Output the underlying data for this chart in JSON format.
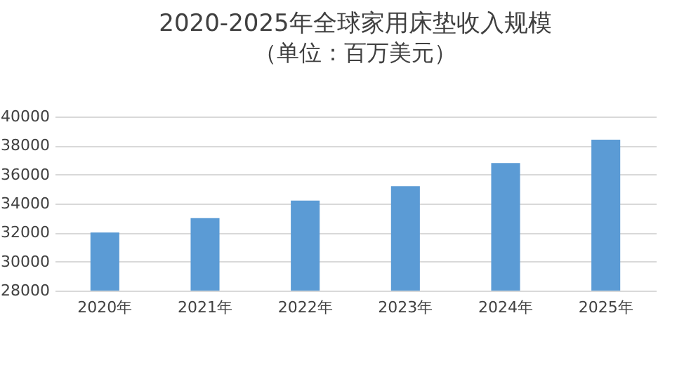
{
  "chart_data": {
    "type": "bar",
    "title": "2020-2025年全球家用床垫收入规模",
    "subtitle": "（单位：百万美元）",
    "categories": [
      "2020年",
      "2021年",
      "2022年",
      "2023年",
      "2024年",
      "2025年"
    ],
    "values": [
      32000,
      33000,
      34200,
      35200,
      36800,
      38400
    ],
    "color": "#5b9bd5",
    "ylim": [
      28000,
      40000
    ],
    "yticks": [
      28000,
      30000,
      32000,
      34000,
      36000,
      38000,
      40000
    ],
    "grid": "y"
  }
}
